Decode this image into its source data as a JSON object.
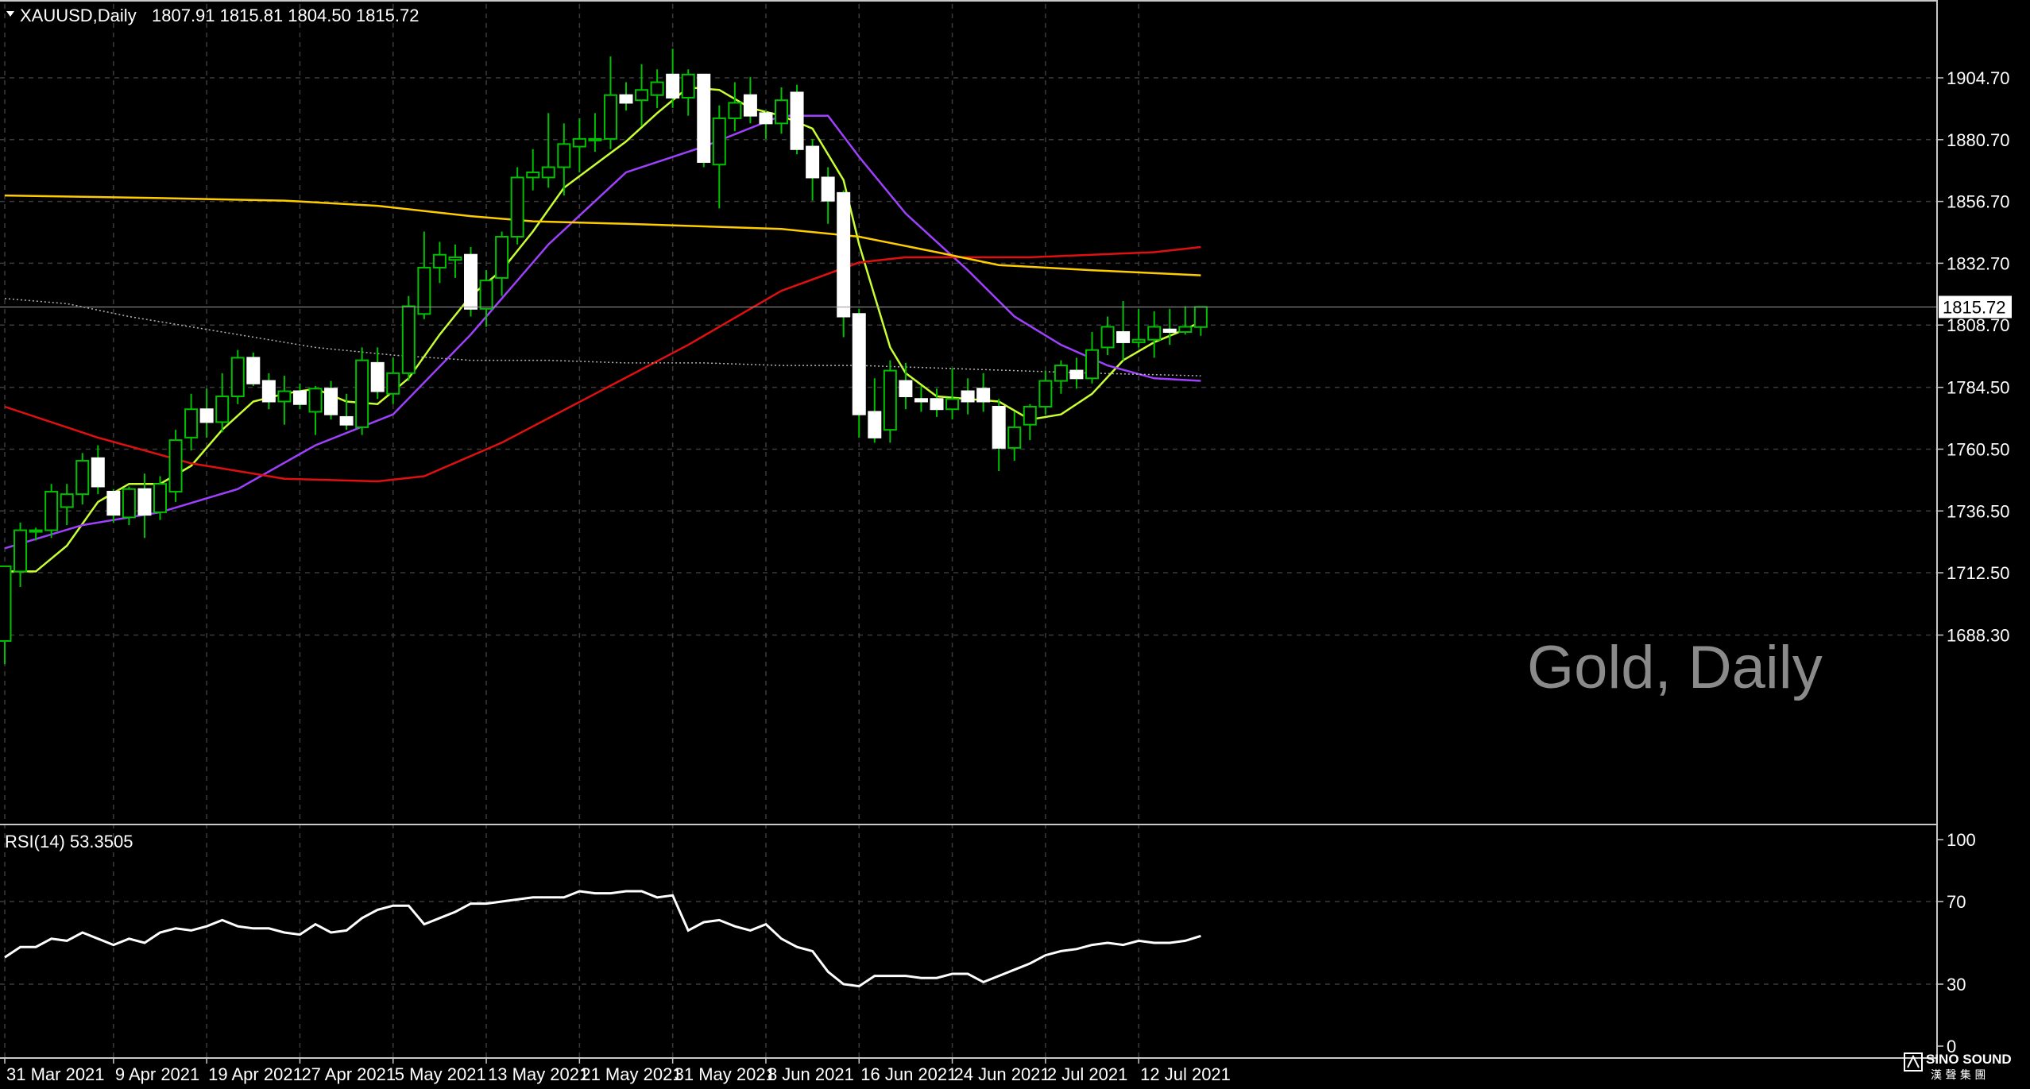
{
  "header": {
    "symbol_label": "XAUUSD,Daily",
    "ohlc": "1807.91 1815.81 1804.50 1815.72"
  },
  "watermark": "Gold, Daily",
  "logo": {
    "name": "SINO SOUND",
    "subtitle": "漢 聲 集 團"
  },
  "colors": {
    "background": "#000000",
    "grid": "#3b3b3b",
    "frame": "#c8c8c8",
    "bull_candle": "#000000",
    "bear_candle": "#ffffff",
    "wick": "#00c000",
    "ma_fast": "#c8ff32",
    "ma_medium": "#a040ff",
    "ma_slow": "#e01010",
    "ma_long": "#ffcc00",
    "ma_longest": "#b4b4b4",
    "rsi": "#ffffff"
  },
  "chart_data": [
    {
      "type": "candlestick",
      "title": "",
      "ylim": [
        1665,
        1925
      ],
      "y_ticks": [
        "1904.70",
        "1880.70",
        "1856.70",
        "1832.70",
        "1808.70",
        "1784.50",
        "1760.50",
        "1736.50",
        "1712.50",
        "1688.30"
      ],
      "current_price_label": "1815.72",
      "x_tick_labels": [
        "31 Mar 2021",
        "9 Apr 2021",
        "19 Apr 2021",
        "27 Apr 2021",
        "5 May 2021",
        "13 May 2021",
        "21 May 2021",
        "31 May 2021",
        "8 Jun 2021",
        "16 Jun 2021",
        "24 Jun 2021",
        "2 Jul 2021",
        "12 Jul 2021"
      ],
      "x_tick_bar_index": [
        0,
        7,
        13,
        19,
        25,
        31,
        37,
        43,
        49,
        55,
        61,
        67,
        73
      ],
      "candles": [
        {
          "o": 1686,
          "h": 1715,
          "l": 1677,
          "c": 1715
        },
        {
          "o": 1713,
          "h": 1732,
          "l": 1707,
          "c": 1729
        },
        {
          "o": 1729,
          "h": 1730,
          "l": 1725,
          "c": 1729
        },
        {
          "o": 1729,
          "h": 1747,
          "l": 1726,
          "c": 1744
        },
        {
          "o": 1738,
          "h": 1747,
          "l": 1731,
          "c": 1743
        },
        {
          "o": 1743,
          "h": 1759,
          "l": 1739,
          "c": 1756
        },
        {
          "o": 1757,
          "h": 1762,
          "l": 1743,
          "c": 1746
        },
        {
          "o": 1744,
          "h": 1745,
          "l": 1732,
          "c": 1735
        },
        {
          "o": 1734,
          "h": 1746,
          "l": 1731,
          "c": 1745
        },
        {
          "o": 1745,
          "h": 1751,
          "l": 1726,
          "c": 1735
        },
        {
          "o": 1736,
          "h": 1750,
          "l": 1733,
          "c": 1747
        },
        {
          "o": 1744,
          "h": 1768,
          "l": 1740,
          "c": 1764
        },
        {
          "o": 1765,
          "h": 1782,
          "l": 1760,
          "c": 1776
        },
        {
          "o": 1776,
          "h": 1784,
          "l": 1765,
          "c": 1771
        },
        {
          "o": 1771,
          "h": 1790,
          "l": 1767,
          "c": 1781
        },
        {
          "o": 1781,
          "h": 1799,
          "l": 1778,
          "c": 1796
        },
        {
          "o": 1796,
          "h": 1798,
          "l": 1785,
          "c": 1786
        },
        {
          "o": 1787,
          "h": 1790,
          "l": 1776,
          "c": 1779
        },
        {
          "o": 1779,
          "h": 1789,
          "l": 1770,
          "c": 1783
        },
        {
          "o": 1783,
          "h": 1786,
          "l": 1776,
          "c": 1778
        },
        {
          "o": 1775,
          "h": 1785,
          "l": 1766,
          "c": 1784
        },
        {
          "o": 1784,
          "h": 1787,
          "l": 1772,
          "c": 1774
        },
        {
          "o": 1773,
          "h": 1782,
          "l": 1768,
          "c": 1770
        },
        {
          "o": 1769,
          "h": 1800,
          "l": 1766,
          "c": 1795
        },
        {
          "o": 1794,
          "h": 1800,
          "l": 1780,
          "c": 1783
        },
        {
          "o": 1782,
          "h": 1796,
          "l": 1778,
          "c": 1790
        },
        {
          "o": 1790,
          "h": 1820,
          "l": 1787,
          "c": 1816
        },
        {
          "o": 1813,
          "h": 1845,
          "l": 1811,
          "c": 1831
        },
        {
          "o": 1831,
          "h": 1841,
          "l": 1825,
          "c": 1836
        },
        {
          "o": 1834,
          "h": 1840,
          "l": 1827,
          "c": 1835
        },
        {
          "o": 1836,
          "h": 1839,
          "l": 1812,
          "c": 1815
        },
        {
          "o": 1815,
          "h": 1830,
          "l": 1808,
          "c": 1826
        },
        {
          "o": 1827,
          "h": 1845,
          "l": 1820,
          "c": 1843
        },
        {
          "o": 1843,
          "h": 1870,
          "l": 1840,
          "c": 1866
        },
        {
          "o": 1866,
          "h": 1877,
          "l": 1861,
          "c": 1868
        },
        {
          "o": 1866,
          "h": 1891,
          "l": 1862,
          "c": 1870
        },
        {
          "o": 1870,
          "h": 1887,
          "l": 1859,
          "c": 1879
        },
        {
          "o": 1878,
          "h": 1889,
          "l": 1868,
          "c": 1881
        },
        {
          "o": 1881,
          "h": 1891,
          "l": 1876,
          "c": 1881
        },
        {
          "o": 1881,
          "h": 1913,
          "l": 1877,
          "c": 1898
        },
        {
          "o": 1898,
          "h": 1903,
          "l": 1892,
          "c": 1895
        },
        {
          "o": 1896,
          "h": 1910,
          "l": 1886,
          "c": 1900
        },
        {
          "o": 1898,
          "h": 1908,
          "l": 1893,
          "c": 1903
        },
        {
          "o": 1906,
          "h": 1916,
          "l": 1893,
          "c": 1897
        },
        {
          "o": 1897,
          "h": 1908,
          "l": 1890,
          "c": 1906
        },
        {
          "o": 1906,
          "h": 1906,
          "l": 1870,
          "c": 1872
        },
        {
          "o": 1871,
          "h": 1894,
          "l": 1854,
          "c": 1889
        },
        {
          "o": 1889,
          "h": 1903,
          "l": 1884,
          "c": 1895
        },
        {
          "o": 1898,
          "h": 1905,
          "l": 1887,
          "c": 1890
        },
        {
          "o": 1891,
          "h": 1892,
          "l": 1881,
          "c": 1887
        },
        {
          "o": 1887,
          "h": 1901,
          "l": 1883,
          "c": 1896
        },
        {
          "o": 1899,
          "h": 1902,
          "l": 1875,
          "c": 1877
        },
        {
          "o": 1878,
          "h": 1881,
          "l": 1857,
          "c": 1866
        },
        {
          "o": 1866,
          "h": 1870,
          "l": 1848,
          "c": 1857
        },
        {
          "o": 1860,
          "h": 1861,
          "l": 1804,
          "c": 1812
        },
        {
          "o": 1813,
          "h": 1815,
          "l": 1765,
          "c": 1774
        },
        {
          "o": 1775,
          "h": 1788,
          "l": 1763,
          "c": 1765
        },
        {
          "o": 1768,
          "h": 1795,
          "l": 1763,
          "c": 1791
        },
        {
          "o": 1787,
          "h": 1794,
          "l": 1776,
          "c": 1781
        },
        {
          "o": 1780,
          "h": 1785,
          "l": 1775,
          "c": 1779
        },
        {
          "o": 1780,
          "h": 1784,
          "l": 1773,
          "c": 1776
        },
        {
          "o": 1776,
          "h": 1792,
          "l": 1772,
          "c": 1780
        },
        {
          "o": 1783,
          "h": 1788,
          "l": 1774,
          "c": 1779
        },
        {
          "o": 1784,
          "h": 1790,
          "l": 1775,
          "c": 1779
        },
        {
          "o": 1777,
          "h": 1780,
          "l": 1752,
          "c": 1761
        },
        {
          "o": 1761,
          "h": 1775,
          "l": 1756,
          "c": 1769
        },
        {
          "o": 1770,
          "h": 1778,
          "l": 1764,
          "c": 1777
        },
        {
          "o": 1777,
          "h": 1791,
          "l": 1774,
          "c": 1787
        },
        {
          "o": 1787,
          "h": 1795,
          "l": 1782,
          "c": 1793
        },
        {
          "o": 1791,
          "h": 1796,
          "l": 1784,
          "c": 1788
        },
        {
          "o": 1788,
          "h": 1806,
          "l": 1786,
          "c": 1799
        },
        {
          "o": 1800,
          "h": 1812,
          "l": 1797,
          "c": 1808
        },
        {
          "o": 1806,
          "h": 1818,
          "l": 1795,
          "c": 1802
        },
        {
          "o": 1802,
          "h": 1815,
          "l": 1800,
          "c": 1803
        },
        {
          "o": 1803,
          "h": 1814,
          "l": 1796,
          "c": 1808
        },
        {
          "o": 1807,
          "h": 1815,
          "l": 1801,
          "c": 1806
        },
        {
          "o": 1806,
          "h": 1816,
          "l": 1805,
          "c": 1808
        },
        {
          "o": 1807.91,
          "h": 1815.81,
          "l": 1804.5,
          "c": 1815.72
        }
      ],
      "moving_averages": [
        {
          "color_key": "ma_fast",
          "values": [
            [
              0,
              1713
            ],
            [
              2,
              1713
            ],
            [
              4,
              1723
            ],
            [
              6,
              1740
            ],
            [
              8,
              1747
            ],
            [
              10,
              1747
            ],
            [
              12,
              1754
            ],
            [
              14,
              1768
            ],
            [
              16,
              1779
            ],
            [
              18,
              1782
            ],
            [
              20,
              1784
            ],
            [
              22,
              1779
            ],
            [
              24,
              1778
            ],
            [
              26,
              1788
            ],
            [
              28,
              1805
            ],
            [
              30,
              1820
            ],
            [
              32,
              1830
            ],
            [
              34,
              1845
            ],
            [
              36,
              1862
            ],
            [
              38,
              1871
            ],
            [
              40,
              1880
            ],
            [
              42,
              1891
            ],
            [
              44,
              1901
            ],
            [
              46,
              1900
            ],
            [
              48,
              1893
            ],
            [
              50,
              1890
            ],
            [
              52,
              1885
            ],
            [
              54,
              1865
            ],
            [
              55,
              1840
            ],
            [
              56,
              1820
            ],
            [
              57,
              1800
            ],
            [
              58,
              1790
            ],
            [
              60,
              1781
            ],
            [
              62,
              1780
            ],
            [
              64,
              1779
            ],
            [
              66,
              1772
            ],
            [
              68,
              1774
            ],
            [
              70,
              1782
            ],
            [
              72,
              1795
            ],
            [
              74,
              1802
            ],
            [
              76,
              1807
            ],
            [
              77,
              1810
            ]
          ]
        },
        {
          "color_key": "ma_medium",
          "values": [
            [
              0,
              1722
            ],
            [
              5,
              1731
            ],
            [
              10,
              1736
            ],
            [
              15,
              1745
            ],
            [
              20,
              1762
            ],
            [
              25,
              1774
            ],
            [
              30,
              1805
            ],
            [
              35,
              1840
            ],
            [
              40,
              1868
            ],
            [
              45,
              1878
            ],
            [
              50,
              1890
            ],
            [
              53,
              1890
            ],
            [
              55,
              1874
            ],
            [
              58,
              1852
            ],
            [
              62,
              1830
            ],
            [
              65,
              1812
            ],
            [
              68,
              1801
            ],
            [
              71,
              1793
            ],
            [
              74,
              1788
            ],
            [
              77,
              1787
            ]
          ]
        },
        {
          "color_key": "ma_slow",
          "values": [
            [
              0,
              1777
            ],
            [
              6,
              1765
            ],
            [
              12,
              1755
            ],
            [
              18,
              1749
            ],
            [
              24,
              1748
            ],
            [
              27,
              1750
            ],
            [
              32,
              1763
            ],
            [
              38,
              1782
            ],
            [
              44,
              1801
            ],
            [
              50,
              1822
            ],
            [
              55,
              1833
            ],
            [
              58,
              1835
            ],
            [
              62,
              1835
            ],
            [
              66,
              1835
            ],
            [
              70,
              1836
            ],
            [
              74,
              1837
            ],
            [
              77,
              1839
            ]
          ]
        },
        {
          "color_key": "ma_long",
          "values": [
            [
              0,
              1859
            ],
            [
              10,
              1858
            ],
            [
              18,
              1857
            ],
            [
              24,
              1855
            ],
            [
              30,
              1851
            ],
            [
              34,
              1849
            ],
            [
              40,
              1848
            ],
            [
              45,
              1847
            ],
            [
              50,
              1846
            ],
            [
              55,
              1843
            ],
            [
              60,
              1837
            ],
            [
              64,
              1832
            ],
            [
              70,
              1830
            ],
            [
              77,
              1828
            ]
          ]
        },
        {
          "color_key": "ma_longest",
          "values": [
            [
              0,
              1819
            ],
            [
              4,
              1817
            ],
            [
              8,
              1812
            ],
            [
              12,
              1808
            ],
            [
              16,
              1804
            ],
            [
              20,
              1800
            ],
            [
              25,
              1797
            ],
            [
              30,
              1795
            ],
            [
              35,
              1795
            ],
            [
              40,
              1794
            ],
            [
              45,
              1794
            ],
            [
              50,
              1793
            ],
            [
              55,
              1793
            ],
            [
              60,
              1792
            ],
            [
              65,
              1791
            ],
            [
              70,
              1790
            ],
            [
              77,
              1789
            ]
          ]
        }
      ]
    },
    {
      "type": "line",
      "title": "RSI(14) 53.3505",
      "ylim": [
        0,
        100
      ],
      "y_ticks": [
        "100",
        "70",
        "30",
        "0"
      ],
      "series": [
        {
          "values": [
            43,
            48,
            48,
            52,
            51,
            55,
            52,
            49,
            52,
            50,
            55,
            57,
            56,
            58,
            61,
            58,
            57,
            57,
            55,
            54,
            59,
            55,
            56,
            62,
            66,
            68,
            68,
            59,
            62,
            65,
            69,
            69,
            70,
            71,
            72,
            72,
            72,
            75,
            74,
            74,
            75,
            75,
            72,
            73,
            56,
            60,
            61,
            58,
            56,
            59,
            52,
            48,
            46,
            36,
            30,
            29,
            34,
            34,
            34,
            33,
            33,
            35,
            35,
            31,
            34,
            37,
            40,
            44,
            46,
            47,
            49,
            50,
            49,
            51,
            50,
            50,
            51,
            53.35
          ]
        }
      ]
    }
  ]
}
